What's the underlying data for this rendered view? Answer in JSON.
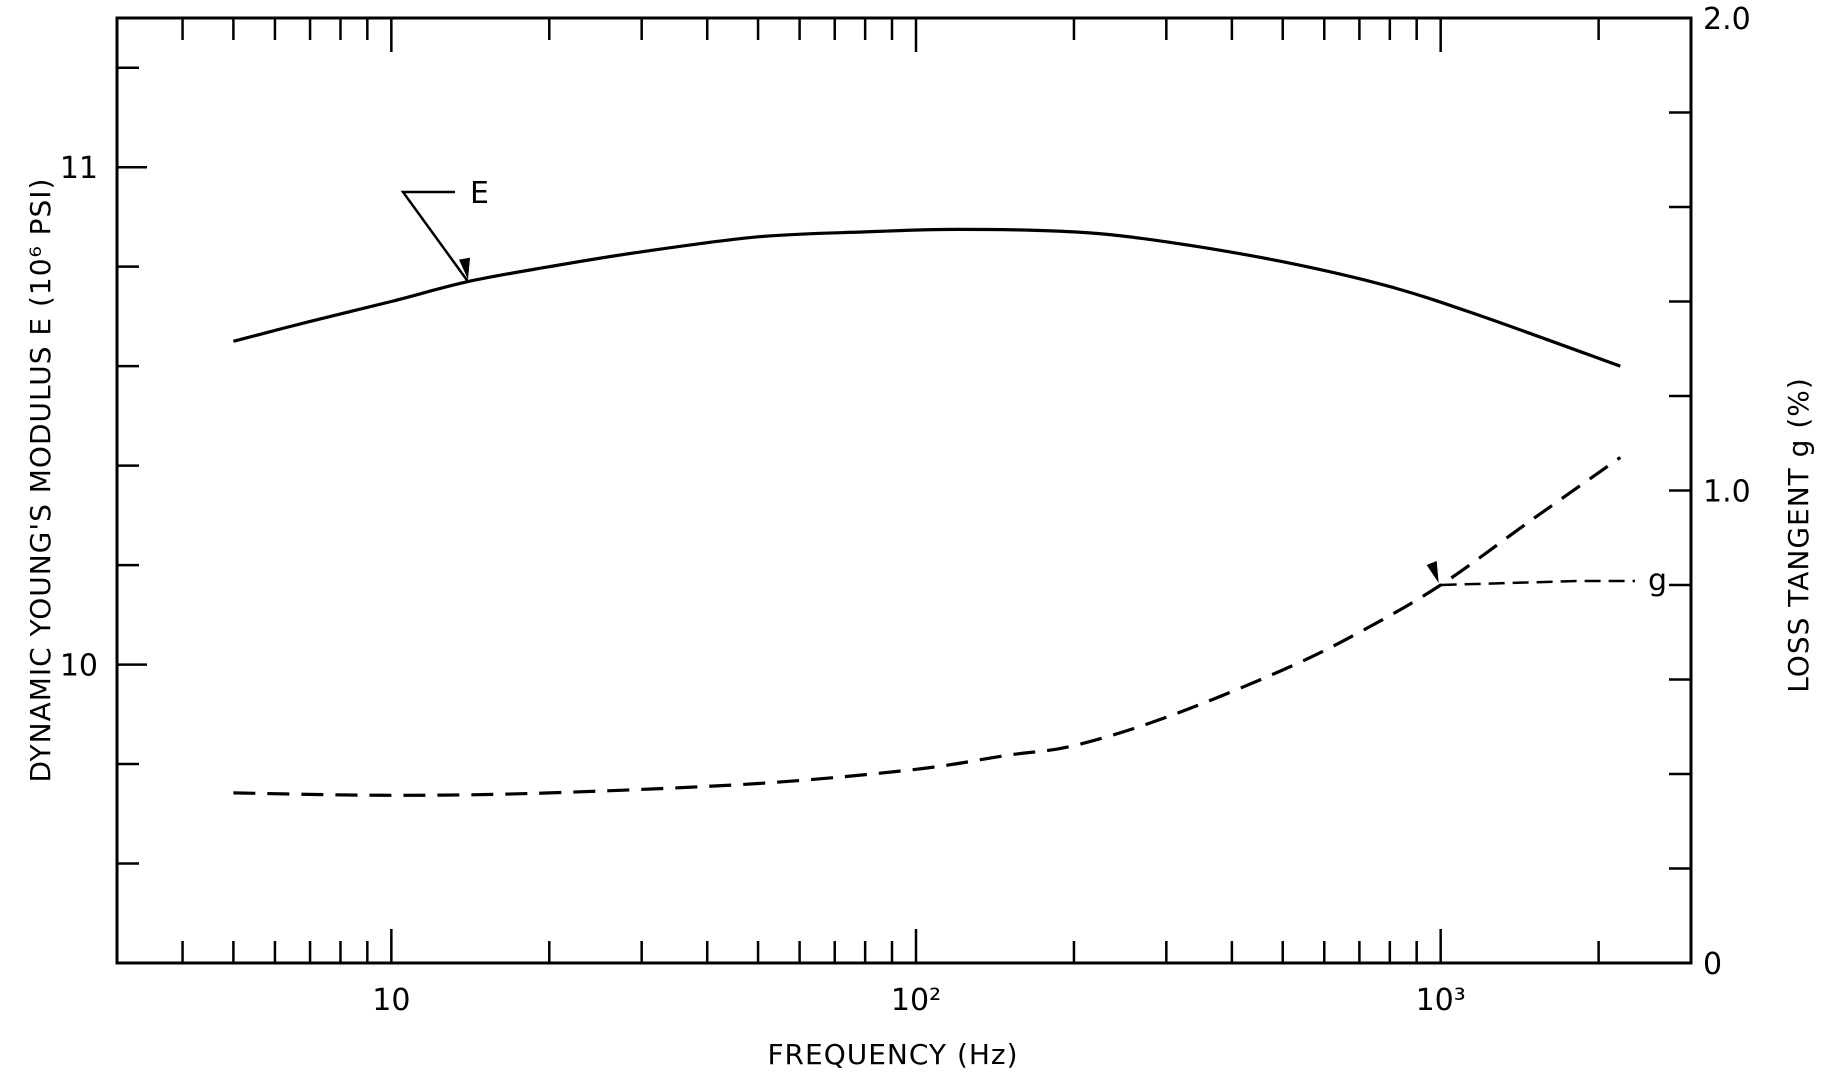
{
  "chart_data": {
    "type": "line",
    "xlabel": "FREQUENCY  (Hz)",
    "ylabel_left": "DYNAMIC  YOUNG'S  MODULUS   E   (10⁶ PSI)",
    "ylabel_right": "LOSS  TANGENT   g  (%)",
    "x_scale": "log",
    "xlim": [
      3,
      3000
    ],
    "ylim_left": [
      9.4,
      11.3
    ],
    "ylim_right": [
      0,
      2.0
    ],
    "x_ticks": [
      {
        "value": 10,
        "label": "10"
      },
      {
        "value": 100,
        "label": "10²"
      },
      {
        "value": 1000,
        "label": "10³"
      }
    ],
    "y_left_ticks": [
      {
        "value": 10,
        "label": "10"
      },
      {
        "value": 11,
        "label": "11"
      }
    ],
    "y_right_ticks": [
      {
        "value": 0,
        "label": "0"
      },
      {
        "value": 1.0,
        "label": "1.0"
      },
      {
        "value": 2.0,
        "label": "2.0"
      }
    ],
    "series": [
      {
        "name": "E",
        "axis": "left",
        "style": "solid",
        "x": [
          5,
          7,
          10,
          14,
          20,
          30,
          50,
          80,
          120,
          200,
          300,
          500,
          800,
          1200,
          2200
        ],
        "y": [
          10.65,
          10.69,
          10.73,
          10.77,
          10.8,
          10.83,
          10.86,
          10.87,
          10.875,
          10.87,
          10.85,
          10.81,
          10.76,
          10.7,
          10.6
        ]
      },
      {
        "name": "g",
        "axis": "right",
        "style": "dashed",
        "x": [
          5,
          10,
          20,
          50,
          100,
          150,
          200,
          300,
          500,
          700,
          1000,
          1500,
          2200
        ],
        "y": [
          0.36,
          0.355,
          0.36,
          0.38,
          0.41,
          0.44,
          0.46,
          0.52,
          0.62,
          0.7,
          0.8,
          0.94,
          1.07
        ]
      }
    ],
    "grid": false,
    "legend": "callout labels"
  }
}
